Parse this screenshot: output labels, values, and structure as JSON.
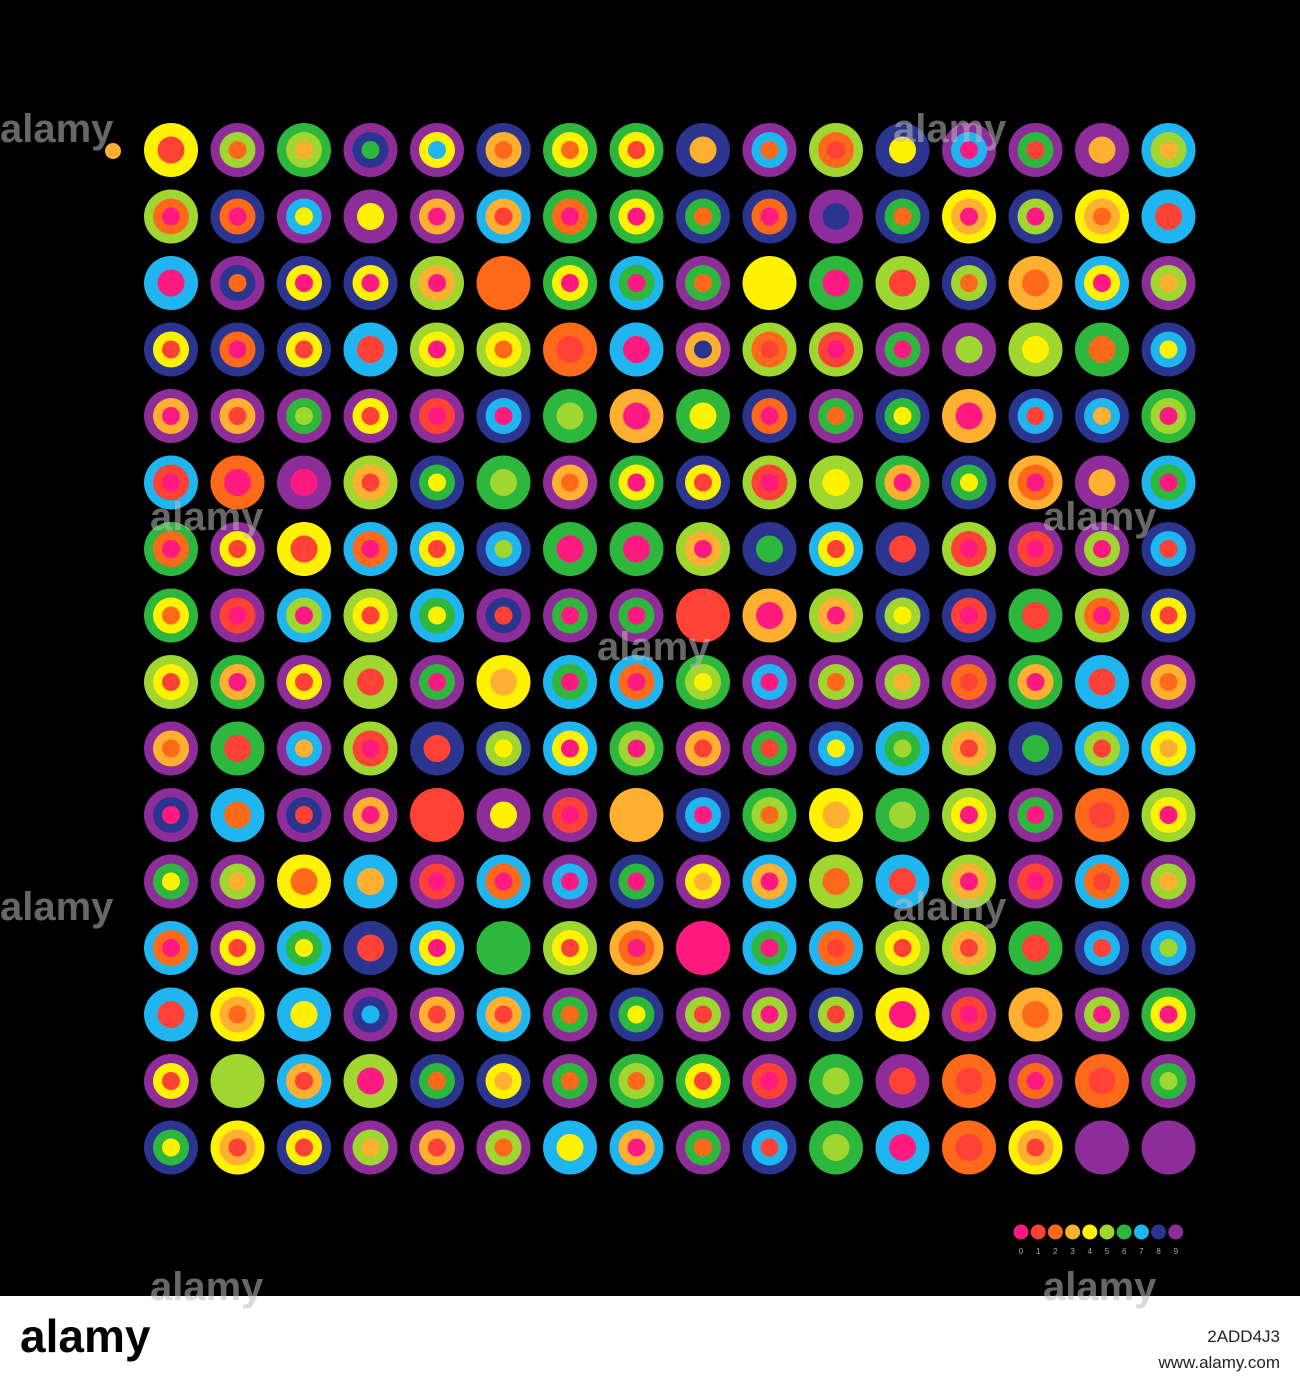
{
  "palette": {
    "colors": [
      "#ff1a7f",
      "#ff4136",
      "#ff6a1a",
      "#ffb030",
      "#fff200",
      "#9fd630",
      "#2db83d",
      "#1fb5f0",
      "#2b3590",
      "#8e2c9a"
    ],
    "labels": [
      "0",
      "1",
      "2",
      "3",
      "4",
      "5",
      "6",
      "7",
      "8",
      "9"
    ]
  },
  "lead": [
    3
  ],
  "grid": [
    [
      [
        4,
        1
      ],
      [
        9,
        5,
        2
      ],
      [
        6,
        5,
        3
      ],
      [
        9,
        8,
        6
      ],
      [
        9,
        4,
        7
      ],
      [
        8,
        3,
        2
      ],
      [
        6,
        4,
        2
      ],
      [
        6,
        4,
        1
      ],
      [
        8,
        3
      ],
      [
        9,
        7,
        2
      ],
      [
        5,
        2,
        1
      ],
      [
        8,
        4
      ],
      [
        9,
        7,
        0
      ],
      [
        9,
        6,
        1
      ],
      [
        9,
        3
      ],
      [
        7,
        5,
        3
      ]
    ],
    [
      [
        5,
        2,
        0
      ],
      [
        8,
        2,
        0
      ],
      [
        9,
        7,
        4
      ],
      [
        9,
        4
      ],
      [
        9,
        3,
        0
      ],
      [
        7,
        3,
        1
      ],
      [
        6,
        2,
        0
      ],
      [
        6,
        4,
        0
      ],
      [
        8,
        6,
        2
      ],
      [
        8,
        2,
        0
      ],
      [
        9,
        8
      ],
      [
        8,
        6,
        2
      ],
      [
        4,
        3,
        0
      ],
      [
        8,
        5,
        0
      ],
      [
        4,
        3,
        2
      ],
      [
        7,
        1
      ]
    ],
    [
      [
        7,
        0
      ],
      [
        9,
        8,
        2
      ],
      [
        8,
        4,
        0
      ],
      [
        8,
        4,
        0
      ],
      [
        5,
        3,
        0
      ],
      [
        2
      ],
      [
        6,
        4,
        0
      ],
      [
        7,
        6,
        0
      ],
      [
        9,
        6,
        2
      ],
      [
        4
      ],
      [
        6,
        0
      ],
      [
        5,
        1
      ],
      [
        8,
        5,
        2
      ],
      [
        3,
        2
      ],
      [
        7,
        4,
        0
      ],
      [
        9,
        5,
        3
      ]
    ],
    [
      [
        8,
        4,
        1
      ],
      [
        8,
        2,
        0
      ],
      [
        8,
        4,
        1
      ],
      [
        7,
        1
      ],
      [
        5,
        4,
        0
      ],
      [
        5,
        4,
        2
      ],
      [
        2,
        1
      ],
      [
        7,
        0
      ],
      [
        9,
        3,
        8
      ],
      [
        5,
        2,
        1
      ],
      [
        5,
        1,
        0
      ],
      [
        9,
        6,
        0
      ],
      [
        9,
        5
      ],
      [
        5,
        4
      ],
      [
        6,
        2
      ],
      [
        8,
        7,
        4
      ]
    ],
    [
      [
        9,
        3,
        0
      ],
      [
        9,
        3,
        1
      ],
      [
        9,
        6,
        5
      ],
      [
        9,
        4,
        1
      ],
      [
        9,
        1,
        0
      ],
      [
        8,
        7,
        0
      ],
      [
        6,
        5
      ],
      [
        3,
        0
      ],
      [
        6,
        4
      ],
      [
        8,
        2,
        0
      ],
      [
        9,
        6,
        2
      ],
      [
        8,
        6,
        4
      ],
      [
        3,
        0
      ],
      [
        8,
        7,
        1
      ],
      [
        8,
        7,
        3
      ],
      [
        6,
        5,
        0
      ]
    ],
    [
      [
        7,
        1,
        0
      ],
      [
        2,
        0
      ],
      [
        9,
        0
      ],
      [
        5,
        3,
        1
      ],
      [
        8,
        6,
        4
      ],
      [
        6,
        5
      ],
      [
        9,
        3,
        2
      ],
      [
        6,
        4,
        0
      ],
      [
        8,
        4,
        1
      ],
      [
        5,
        1,
        0
      ],
      [
        5,
        4
      ],
      [
        6,
        3,
        0
      ],
      [
        8,
        6,
        4
      ],
      [
        3,
        2,
        0
      ],
      [
        9,
        3
      ],
      [
        7,
        6,
        0
      ]
    ],
    [
      [
        6,
        2,
        0
      ],
      [
        9,
        4,
        1
      ],
      [
        4,
        1
      ],
      [
        7,
        2,
        0
      ],
      [
        7,
        4,
        1
      ],
      [
        8,
        7,
        5
      ],
      [
        6,
        0
      ],
      [
        6,
        0
      ],
      [
        5,
        3,
        0
      ],
      [
        8,
        6
      ],
      [
        7,
        4,
        1
      ],
      [
        8,
        1
      ],
      [
        5,
        1,
        0
      ],
      [
        9,
        1,
        0
      ],
      [
        9,
        5,
        0
      ],
      [
        8,
        7,
        1
      ]
    ],
    [
      [
        6,
        4,
        2
      ],
      [
        9,
        1,
        0
      ],
      [
        7,
        5,
        0
      ],
      [
        5,
        4,
        1
      ],
      [
        7,
        6,
        4
      ],
      [
        9,
        8,
        1
      ],
      [
        9,
        6,
        0
      ],
      [
        9,
        6,
        0
      ],
      [
        1
      ],
      [
        3,
        0
      ],
      [
        5,
        3,
        0
      ],
      [
        8,
        5,
        4
      ],
      [
        8,
        1,
        0
      ],
      [
        6,
        1
      ],
      [
        5,
        2,
        0
      ],
      [
        8,
        4,
        1
      ]
    ],
    [
      [
        5,
        4,
        1
      ],
      [
        6,
        3,
        0
      ],
      [
        9,
        4,
        1
      ],
      [
        5,
        1
      ],
      [
        9,
        6,
        0
      ],
      [
        4,
        3
      ],
      [
        7,
        6,
        0
      ],
      [
        7,
        2,
        0
      ],
      [
        6,
        5,
        4
      ],
      [
        9,
        7,
        0
      ],
      [
        9,
        5,
        2
      ],
      [
        9,
        5,
        3
      ],
      [
        9,
        2,
        1
      ],
      [
        6,
        3,
        0
      ],
      [
        7,
        1
      ],
      [
        9,
        3,
        2
      ]
    ],
    [
      [
        9,
        3,
        2
      ],
      [
        6,
        1
      ],
      [
        9,
        7,
        3
      ],
      [
        5,
        1,
        0
      ],
      [
        8,
        1
      ],
      [
        8,
        5,
        4
      ],
      [
        7,
        4,
        0
      ],
      [
        6,
        5,
        0
      ],
      [
        9,
        3,
        1
      ],
      [
        9,
        6,
        1
      ],
      [
        8,
        7,
        4
      ],
      [
        7,
        6,
        5
      ],
      [
        5,
        3,
        1
      ],
      [
        8,
        6
      ],
      [
        7,
        5,
        1
      ],
      [
        7,
        4,
        3
      ]
    ],
    [
      [
        9,
        8,
        0
      ],
      [
        7,
        2
      ],
      [
        9,
        8,
        1
      ],
      [
        9,
        3,
        0
      ],
      [
        1
      ],
      [
        9,
        4
      ],
      [
        9,
        1,
        0
      ],
      [
        3
      ],
      [
        8,
        7,
        0
      ],
      [
        6,
        5,
        2
      ],
      [
        4,
        3
      ],
      [
        6,
        5
      ],
      [
        5,
        4,
        0
      ],
      [
        9,
        6,
        0
      ],
      [
        2,
        1
      ],
      [
        5,
        4,
        0
      ]
    ],
    [
      [
        9,
        6,
        4
      ],
      [
        9,
        5,
        3
      ],
      [
        4,
        2
      ],
      [
        7,
        3
      ],
      [
        9,
        1,
        0
      ],
      [
        7,
        2,
        0
      ],
      [
        9,
        7,
        0
      ],
      [
        8,
        6,
        0
      ],
      [
        9,
        4,
        3
      ],
      [
        7,
        3,
        0
      ],
      [
        5,
        2
      ],
      [
        7,
        1
      ],
      [
        5,
        3,
        0
      ],
      [
        9,
        1,
        0
      ],
      [
        7,
        2,
        1
      ],
      [
        9,
        5,
        3
      ]
    ],
    [
      [
        7,
        2,
        0
      ],
      [
        9,
        4,
        1
      ],
      [
        7,
        6,
        4
      ],
      [
        8,
        1
      ],
      [
        7,
        4,
        0
      ],
      [
        6
      ],
      [
        5,
        4,
        1
      ],
      [
        3,
        2,
        0
      ],
      [
        0
      ],
      [
        7,
        6,
        0
      ],
      [
        7,
        2,
        1
      ],
      [
        5,
        4,
        1
      ],
      [
        5,
        3,
        1
      ],
      [
        6,
        1
      ],
      [
        8,
        7,
        1
      ],
      [
        8,
        7,
        5
      ]
    ],
    [
      [
        7,
        1
      ],
      [
        4,
        3,
        2
      ],
      [
        7,
        4
      ],
      [
        9,
        8,
        7
      ],
      [
        9,
        3,
        1
      ],
      [
        7,
        3,
        1
      ],
      [
        9,
        6,
        2
      ],
      [
        8,
        6,
        4
      ],
      [
        9,
        5,
        1
      ],
      [
        9,
        5,
        0
      ],
      [
        8,
        5,
        1
      ],
      [
        4,
        0
      ],
      [
        9,
        1,
        0
      ],
      [
        3,
        2
      ],
      [
        9,
        5,
        0
      ],
      [
        6,
        4,
        0
      ]
    ],
    [
      [
        9,
        4,
        1
      ],
      [
        5
      ],
      [
        7,
        3,
        1
      ],
      [
        5,
        0
      ],
      [
        8,
        6,
        2
      ],
      [
        8,
        4,
        3
      ],
      [
        9,
        6,
        2
      ],
      [
        6,
        5,
        2
      ],
      [
        6,
        4,
        1
      ],
      [
        9,
        1,
        0
      ],
      [
        6,
        5
      ],
      [
        9,
        1
      ],
      [
        2,
        1
      ],
      [
        9,
        2,
        0
      ],
      [
        2,
        1
      ],
      [
        9,
        6,
        5
      ]
    ],
    [
      [
        8,
        6,
        4
      ],
      [
        4,
        3,
        1
      ],
      [
        8,
        4,
        1
      ],
      [
        9,
        5,
        3
      ],
      [
        9,
        3,
        1
      ],
      [
        9,
        5,
        2
      ],
      [
        7,
        4
      ],
      [
        7,
        3,
        0
      ],
      [
        9,
        6,
        2
      ],
      [
        8,
        7,
        1
      ],
      [
        6,
        5
      ],
      [
        7,
        0
      ],
      [
        2,
        1
      ],
      [
        4,
        3,
        1
      ],
      [
        9
      ],
      [
        9
      ]
    ]
  ],
  "watermark": "alamy",
  "footer": {
    "logo": "alamy",
    "image_id": "2ADD4J3",
    "url": "www.alamy.com"
  }
}
